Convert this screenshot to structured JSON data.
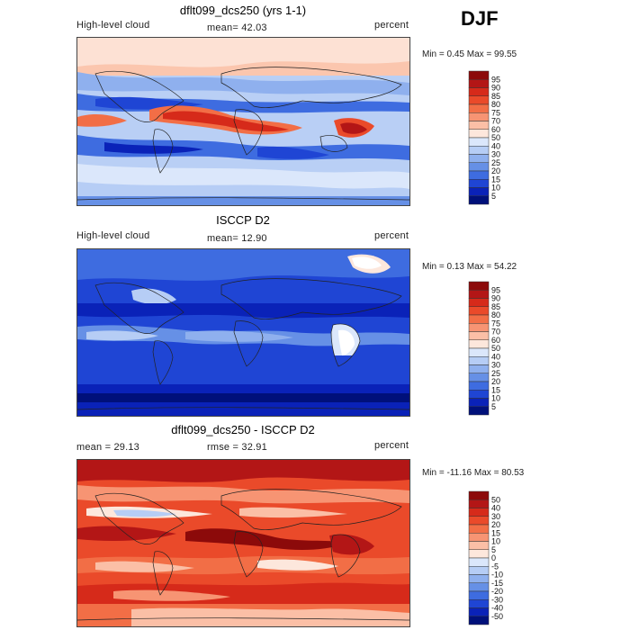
{
  "season": "DJF",
  "panels": [
    {
      "title": "dflt099_dcs250 (yrs 1-1)",
      "left": "High-level cloud",
      "center": "mean=  42.03",
      "right": "percent",
      "minmax": "Min =   0.45 Max =   99.55",
      "colorbar": {
        "labels": [
          "95",
          "90",
          "85",
          "80",
          "75",
          "70",
          "60",
          "50",
          "40",
          "30",
          "25",
          "20",
          "15",
          "10",
          "5"
        ],
        "colors": [
          "#8c0a0a",
          "#b31616",
          "#d62a1a",
          "#ea4a2a",
          "#f26e46",
          "#f79473",
          "#fbbfa6",
          "#fde7dc",
          "#dbe7fb",
          "#b6cdf5",
          "#8fb0ee",
          "#6690e6",
          "#3e6ce0",
          "#1f45d4",
          "#0a22b8",
          "#00107a"
        ]
      }
    },
    {
      "title": "ISCCP D2",
      "left": "High-level cloud",
      "center": "mean=  12.90",
      "right": "percent",
      "minmax": "Min =   0.13 Max =   54.22",
      "colorbar": {
        "labels": [
          "95",
          "90",
          "85",
          "80",
          "75",
          "70",
          "60",
          "50",
          "40",
          "30",
          "25",
          "20",
          "15",
          "10",
          "5"
        ],
        "colors": [
          "#8c0a0a",
          "#b31616",
          "#d62a1a",
          "#ea4a2a",
          "#f26e46",
          "#f79473",
          "#fbbfa6",
          "#fde7dc",
          "#dbe7fb",
          "#b6cdf5",
          "#8fb0ee",
          "#6690e6",
          "#3e6ce0",
          "#1f45d4",
          "#0a22b8",
          "#00107a"
        ]
      }
    },
    {
      "title": "dflt099_dcs250 - ISCCP D2",
      "left": "mean =   29.13",
      "center": "rmse =   32.91",
      "right": "percent",
      "minmax": "Min =  -11.16 Max =   80.53",
      "colorbar": {
        "labels": [
          "50",
          "40",
          "30",
          "20",
          "15",
          "10",
          "5",
          "0",
          "-5",
          "-10",
          "-15",
          "-20",
          "-30",
          "-40",
          "-50"
        ],
        "colors": [
          "#8c0a0a",
          "#b31616",
          "#d62a1a",
          "#ea4a2a",
          "#f26e46",
          "#f79473",
          "#fbbfa6",
          "#fde7dc",
          "#dbe7fb",
          "#b6cdf5",
          "#8fb0ee",
          "#6690e6",
          "#3e6ce0",
          "#1f45d4",
          "#0a22b8",
          "#00107a"
        ]
      }
    }
  ]
}
